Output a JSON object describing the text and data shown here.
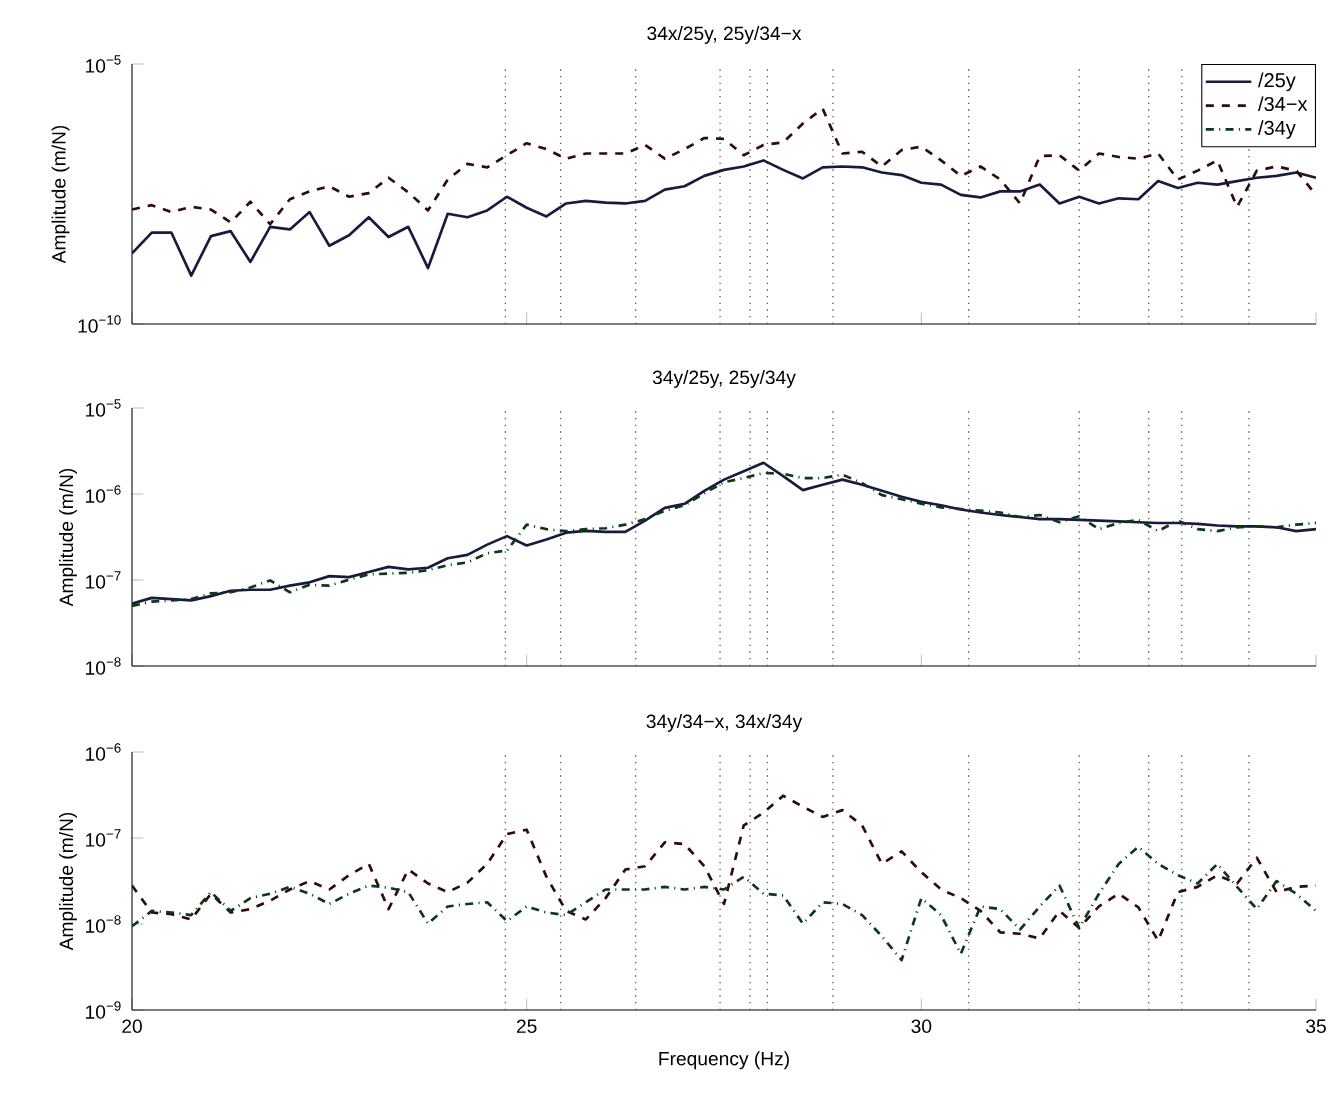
{
  "chart_data": [
    {
      "type": "line",
      "title": "34x/25y,  25y/34−x",
      "ylabel": "Amplitude (m/N)",
      "log": "y",
      "grid": false,
      "legend": "top right",
      "tick_labels": "y",
      "x": [
        20,
        20.25,
        20.5,
        20.75,
        21,
        21.25,
        21.5,
        21.75,
        22,
        22.25,
        22.5,
        22.75,
        23,
        23.25,
        23.5,
        23.75,
        24,
        24.25,
        24.5,
        24.75,
        25,
        25.25,
        25.5,
        25.75,
        26,
        26.25,
        26.5,
        26.75,
        27,
        27.25,
        27.5,
        27.75,
        28,
        28.25,
        28.5,
        28.75,
        29,
        29.25,
        29.5,
        29.75,
        30,
        30.25,
        30.5,
        30.75,
        31,
        31.25,
        31.5,
        31.75,
        32,
        32.25,
        32.5,
        32.75,
        33,
        33.25,
        33.5,
        33.75,
        34,
        34.25,
        34.5,
        34.75,
        35
      ],
      "xlim": [
        20,
        35
      ],
      "xticks": [
        20,
        25,
        30,
        35
      ],
      "ylim": [
        1e-10,
        1e-05
      ],
      "yticks": [
        {
          "value": 1e-10,
          "label": "10$^{−10}$"
        },
        {
          "value": 1e-05,
          "label": "10$^{−5}$"
        }
      ],
      "ref_lines": [
        {
          "axis": "x",
          "value": 24.73,
          "color": "#555555",
          "line_style": "dotted"
        },
        {
          "axis": "x",
          "value": 25.43,
          "color": "#555555",
          "line_style": "dotted"
        },
        {
          "axis": "x",
          "value": 26.38,
          "color": "#555555",
          "line_style": "dotted"
        },
        {
          "axis": "x",
          "value": 27.45,
          "color": "#555555",
          "line_style": "dotted"
        },
        {
          "axis": "x",
          "value": 27.83,
          "color": "#555555",
          "line_style": "dotted"
        },
        {
          "axis": "x",
          "value": 28.05,
          "color": "#555555",
          "line_style": "dotted"
        },
        {
          "axis": "x",
          "value": 28.88,
          "color": "#555555",
          "line_style": "dotted"
        },
        {
          "axis": "x",
          "value": 30.6,
          "color": "#555555",
          "line_style": "dotted"
        },
        {
          "axis": "x",
          "value": 32.0,
          "color": "#555555",
          "line_style": "dotted"
        },
        {
          "axis": "x",
          "value": 32.88,
          "color": "#555555",
          "line_style": "dotted"
        },
        {
          "axis": "x",
          "value": 33.3,
          "color": "#555555",
          "line_style": "dotted"
        },
        {
          "axis": "x",
          "value": 34.15,
          "color": "#555555",
          "line_style": "dotted"
        }
      ],
      "series": [
        {
          "name": "/25y",
          "color": "#1a1a40",
          "line_style": "solid",
          "values": [
            2.28e-09,
            5.7e-09,
            5.7e-09,
            8.5e-10,
            4.9e-09,
            6.1e-09,
            1.56e-09,
            7.4e-09,
            6.6e-09,
            1.42e-08,
            3.2e-09,
            5.1e-09,
            1.13e-08,
            4.7e-09,
            7.4e-09,
            1.19e-09,
            1.32e-08,
            1.13e-08,
            1.53e-08,
            2.8e-08,
            1.72e-08,
            1.17e-08,
            2.08e-08,
            2.33e-08,
            2.16e-08,
            2.08e-08,
            2.33e-08,
            3.83e-08,
            4.46e-08,
            7.05e-08,
            9.2e-08,
            1.07e-07,
            1.4e-07,
            9.2e-08,
            6.3e-08,
            1.03e-07,
            1.07e-07,
            1.03e-07,
            8.2e-08,
            7.3e-08,
            5.2e-08,
            4.8e-08,
            3.04e-08,
            2.72e-08,
            3.55e-08,
            3.55e-08,
            4.8e-08,
            2.08e-08,
            2.8e-08,
            2.08e-08,
            2.61e-08,
            2.51e-08,
            5.6e-08,
            4.13e-08,
            5.2e-08,
            4.8e-08,
            5.6e-08,
            6.5e-08,
            7.05e-08,
            8.2e-08,
            6.5e-08
          ]
        },
        {
          "name": "/34−x",
          "color": "#300a0a",
          "line_style": "dashed",
          "values": [
            1.59e-08,
            1.93e-08,
            1.42e-08,
            1.79e-08,
            1.59e-08,
            9e-09,
            2.24e-08,
            8.3e-09,
            2.51e-08,
            3.55e-08,
            4.46e-08,
            2.8e-08,
            3.29e-08,
            6.5e-08,
            3.41e-08,
            1.53e-08,
            6e-08,
            1.2e-07,
            1.03e-07,
            1.76e-07,
            3e-07,
            2.3e-07,
            1.51e-07,
            1.9e-07,
            1.9e-07,
            1.9e-07,
            2.78e-07,
            1.51e-07,
            2.3e-07,
            3.77e-07,
            3.63e-07,
            1.76e-07,
            2.78e-07,
            3.11e-07,
            7.2e-07,
            1.38e-06,
            1.9e-07,
            2.05e-07,
            1.07e-07,
            2.21e-07,
            2.58e-07,
            1.4e-07,
            7.05e-08,
            1.07e-07,
            6e-08,
            2.08e-08,
            1.69e-07,
            1.76e-07,
            8.9e-08,
            1.9e-07,
            1.63e-07,
            1.51e-07,
            1.9e-07,
            6e-08,
            8.9e-08,
            1.4e-07,
            1.79e-08,
            8.9e-08,
            1.07e-07,
            8.9e-08,
            3.04e-08
          ]
        },
        {
          "name": "/34y",
          "color": "#0a3a14",
          "line_style": "dashdot",
          "values": [
            null,
            null,
            null,
            null,
            null,
            null,
            null,
            null,
            null,
            null,
            null,
            null,
            null,
            null,
            null,
            null,
            null,
            null,
            null,
            null,
            null,
            null,
            null,
            null,
            null,
            null,
            null,
            null,
            null,
            null,
            null,
            null,
            null,
            null,
            null,
            null,
            null,
            null,
            null,
            null,
            null,
            null,
            null,
            null,
            null,
            null,
            null,
            null,
            null,
            null,
            null,
            null,
            null,
            null,
            null,
            null,
            null,
            null,
            null,
            null,
            null
          ]
        }
      ]
    },
    {
      "type": "line",
      "title": "34y/25y, 25y/34y",
      "ylabel": "Amplitude (m/N)",
      "log": "y",
      "grid": false,
      "tick_labels": "y",
      "x": [
        20,
        20.25,
        20.5,
        20.75,
        21,
        21.25,
        21.5,
        21.75,
        22,
        22.25,
        22.5,
        22.75,
        23,
        23.25,
        23.5,
        23.75,
        24,
        24.25,
        24.5,
        24.75,
        25,
        25.25,
        25.5,
        25.75,
        26,
        26.25,
        26.5,
        26.75,
        27,
        27.25,
        27.5,
        27.75,
        28,
        28.25,
        28.5,
        28.75,
        29,
        29.25,
        29.5,
        29.75,
        30,
        30.25,
        30.5,
        30.75,
        31,
        31.25,
        31.5,
        31.75,
        32,
        32.25,
        32.5,
        32.75,
        33,
        33.25,
        33.5,
        33.75,
        34,
        34.25,
        34.5,
        34.75,
        35
      ],
      "xlim": [
        20,
        35
      ],
      "xticks": [
        20,
        25,
        30,
        35
      ],
      "ylim": [
        1e-08,
        1e-05
      ],
      "yticks": [
        {
          "value": 1e-08,
          "label": "10$^{−8}$"
        },
        {
          "value": 1e-07,
          "label": "10$^{−7}$"
        },
        {
          "value": 1e-06,
          "label": "10$^{−6}$"
        },
        {
          "value": 1e-05,
          "label": "10$^{−5}$"
        }
      ],
      "ref_lines": [
        {
          "axis": "x",
          "value": 24.73,
          "color": "#555555",
          "line_style": "dotted"
        },
        {
          "axis": "x",
          "value": 25.43,
          "color": "#555555",
          "line_style": "dotted"
        },
        {
          "axis": "x",
          "value": 26.38,
          "color": "#555555",
          "line_style": "dotted"
        },
        {
          "axis": "x",
          "value": 27.45,
          "color": "#555555",
          "line_style": "dotted"
        },
        {
          "axis": "x",
          "value": 27.83,
          "color": "#555555",
          "line_style": "dotted"
        },
        {
          "axis": "x",
          "value": 28.05,
          "color": "#555555",
          "line_style": "dotted"
        },
        {
          "axis": "x",
          "value": 28.88,
          "color": "#555555",
          "line_style": "dotted"
        },
        {
          "axis": "x",
          "value": 30.6,
          "color": "#555555",
          "line_style": "dotted"
        },
        {
          "axis": "x",
          "value": 32.0,
          "color": "#555555",
          "line_style": "dotted"
        },
        {
          "axis": "x",
          "value": 32.88,
          "color": "#555555",
          "line_style": "dotted"
        },
        {
          "axis": "x",
          "value": 33.3,
          "color": "#555555",
          "line_style": "dotted"
        },
        {
          "axis": "x",
          "value": 34.15,
          "color": "#555555",
          "line_style": "dotted"
        }
      ],
      "series": [
        {
          "color": "#1a1a40",
          "line_style": "solid",
          "values": [
            5.3e-08,
            6.2e-08,
            6e-08,
            5.8e-08,
            6.5e-08,
            7.5e-08,
            7.7e-08,
            7.7e-08,
            8.6e-08,
            9.4e-08,
            1.11e-07,
            1.08e-07,
            1.24e-07,
            1.42e-07,
            1.33e-07,
            1.39e-07,
            1.79e-07,
            1.96e-07,
            2.58e-07,
            3.24e-07,
            2.52e-07,
            2.96e-07,
            3.55e-07,
            3.72e-07,
            3.63e-07,
            3.63e-07,
            4.9e-07,
            6.9e-07,
            7.7e-07,
            1.09e-06,
            1.47e-06,
            1.84e-06,
            2.31e-06,
            1.61e-06,
            1.11e-06,
            1.28e-06,
            1.47e-06,
            1.28e-06,
            1.09e-06,
            9.3e-07,
            8.1e-07,
            7.4e-07,
            6.6e-07,
            6.1e-07,
            5.7e-07,
            5.4e-07,
            5.1e-07,
            5.1e-07,
            5e-07,
            4.9e-07,
            4.8e-07,
            4.7e-07,
            4.6e-07,
            4.6e-07,
            4.5e-07,
            4.3e-07,
            4.2e-07,
            4.2e-07,
            4.1e-07,
            3.7e-07,
            3.9e-07
          ]
        },
        {
          "color": "#0a3a14",
          "line_style": "dashdot",
          "values": [
            5e-08,
            5.6e-08,
            5.8e-08,
            6e-08,
            7e-08,
            7.2e-08,
            8.2e-08,
            9.9e-08,
            7.2e-08,
            8.8e-08,
            8.6e-08,
            1.01e-07,
            1.16e-07,
            1.19e-07,
            1.21e-07,
            1.3e-07,
            1.49e-07,
            1.6e-07,
            2.05e-07,
            2.2e-07,
            4.4e-07,
            3.9e-07,
            3.7e-07,
            3.9e-07,
            4e-07,
            4.4e-07,
            5.1e-07,
            6.4e-07,
            7.4e-07,
            1.02e-06,
            1.37e-06,
            1.53e-06,
            1.76e-06,
            1.72e-06,
            1.53e-06,
            1.53e-06,
            1.68e-06,
            1.34e-06,
            9.7e-07,
            8.7e-07,
            7.7e-07,
            7e-07,
            6.7e-07,
            6.4e-07,
            6.1e-07,
            5.4e-07,
            5.7e-07,
            4.7e-07,
            5.5e-07,
            3.9e-07,
            4.6e-07,
            5e-07,
            3.7e-07,
            4.9e-07,
            3.9e-07,
            3.7e-07,
            4.1e-07,
            4.2e-07,
            4.1e-07,
            4.4e-07,
            4.6e-07
          ]
        }
      ]
    },
    {
      "type": "line",
      "title": "34y/34−x, 34x/34y",
      "xlabel": "Frequency (Hz)",
      "ylabel": "Amplitude (m/N)",
      "log": "y",
      "grid": false,
      "x": [
        20,
        20.25,
        20.5,
        20.75,
        21,
        21.25,
        21.5,
        21.75,
        22,
        22.25,
        22.5,
        22.75,
        23,
        23.25,
        23.5,
        23.75,
        24,
        24.25,
        24.5,
        24.75,
        25,
        25.25,
        25.5,
        25.75,
        26,
        26.25,
        26.5,
        26.75,
        27,
        27.25,
        27.5,
        27.75,
        28,
        28.25,
        28.5,
        28.75,
        29,
        29.25,
        29.5,
        29.75,
        30,
        30.25,
        30.5,
        30.75,
        31,
        31.25,
        31.5,
        31.75,
        32,
        32.25,
        32.5,
        32.75,
        33,
        33.25,
        33.5,
        33.75,
        34,
        34.25,
        34.5,
        34.75,
        35
      ],
      "xlim": [
        20,
        35
      ],
      "xticks": [
        20,
        25,
        30,
        35
      ],
      "ylim": [
        1e-09,
        1e-06
      ],
      "yticks": [
        {
          "value": 1e-09,
          "label": "10$^{−9}$"
        },
        {
          "value": 1e-08,
          "label": "10$^{−8}$"
        },
        {
          "value": 1e-07,
          "label": "10$^{−7}$"
        },
        {
          "value": 1e-06,
          "label": "10$^{−6}$"
        }
      ],
      "ref_lines": [
        {
          "axis": "x",
          "value": 24.73,
          "color": "#555555",
          "line_style": "dotted"
        },
        {
          "axis": "x",
          "value": 25.43,
          "color": "#555555",
          "line_style": "dotted"
        },
        {
          "axis": "x",
          "value": 26.38,
          "color": "#555555",
          "line_style": "dotted"
        },
        {
          "axis": "x",
          "value": 27.45,
          "color": "#555555",
          "line_style": "dotted"
        },
        {
          "axis": "x",
          "value": 27.83,
          "color": "#555555",
          "line_style": "dotted"
        },
        {
          "axis": "x",
          "value": 28.05,
          "color": "#555555",
          "line_style": "dotted"
        },
        {
          "axis": "x",
          "value": 28.88,
          "color": "#555555",
          "line_style": "dotted"
        },
        {
          "axis": "x",
          "value": 30.6,
          "color": "#555555",
          "line_style": "dotted"
        },
        {
          "axis": "x",
          "value": 32.0,
          "color": "#555555",
          "line_style": "dotted"
        },
        {
          "axis": "x",
          "value": 32.88,
          "color": "#555555",
          "line_style": "dotted"
        },
        {
          "axis": "x",
          "value": 33.3,
          "color": "#555555",
          "line_style": "dotted"
        },
        {
          "axis": "x",
          "value": 34.15,
          "color": "#555555",
          "line_style": "dotted"
        }
      ],
      "series": [
        {
          "color": "#300a0a",
          "line_style": "dashed",
          "values": [
            2.8e-08,
            1.36e-08,
            1.3e-08,
            1.13e-08,
            2.25e-08,
            1.36e-08,
            1.49e-08,
            1.87e-08,
            2.52e-08,
            3.16e-08,
            2.52e-08,
            3.7e-08,
            5e-08,
            1.49e-08,
            4.3e-08,
            2.96e-08,
            2.35e-08,
            3.03e-08,
            5e-08,
            1.11e-07,
            1.25e-07,
            3.55e-08,
            1.42e-08,
            1.13e-08,
            2e-08,
            4.3e-08,
            4.7e-08,
            8.9e-08,
            8.5e-08,
            4.7e-08,
            1.71e-08,
            1.4e-07,
            1.97e-07,
            3.1e-07,
            2.31e-07,
            1.76e-07,
            2.11e-07,
            1.4e-07,
            5e-08,
            7e-08,
            4e-08,
            2.52e-08,
            2e-08,
            1.42e-08,
            8e-09,
            7.7e-09,
            6.8e-09,
            1.42e-08,
            9e-09,
            1.6e-08,
            2.25e-08,
            1.56e-08,
            6.4e-09,
            2.35e-08,
            2.7e-08,
            3.7e-08,
            2.96e-08,
            5.9e-08,
            2.35e-08,
            2.7e-08,
            2.8e-08
          ]
        },
        {
          "color": "#0a3a14",
          "line_style": "dashdot",
          "values": [
            9.4e-09,
            1.42e-08,
            1.36e-08,
            1.27e-08,
            2.35e-08,
            1.42e-08,
            2e-08,
            2.25e-08,
            2.7e-08,
            2.25e-08,
            1.71e-08,
            2.25e-08,
            2.8e-08,
            2.64e-08,
            2.35e-08,
            1.01e-08,
            1.6e-08,
            1.71e-08,
            1.79e-08,
            1.08e-08,
            1.6e-08,
            1.36e-08,
            1.27e-08,
            1.79e-08,
            2.52e-08,
            2.52e-08,
            2.52e-08,
            2.7e-08,
            2.52e-08,
            2.7e-08,
            2.52e-08,
            3.55e-08,
            2.25e-08,
            2.15e-08,
            1.01e-08,
            1.79e-08,
            1.71e-08,
            1.27e-08,
            7.2e-09,
            3.8e-09,
            2e-08,
            1.27e-08,
            4.5e-09,
            1.6e-08,
            1.49e-08,
            8.6e-09,
            1.6e-08,
            2.8e-08,
            9e-09,
            2.25e-08,
            5e-08,
            7.9e-08,
            5e-08,
            3.7e-08,
            2.96e-08,
            5e-08,
            2.7e-08,
            1.49e-08,
            3.16e-08,
            2.25e-08,
            1.42e-08
          ]
        }
      ]
    }
  ]
}
